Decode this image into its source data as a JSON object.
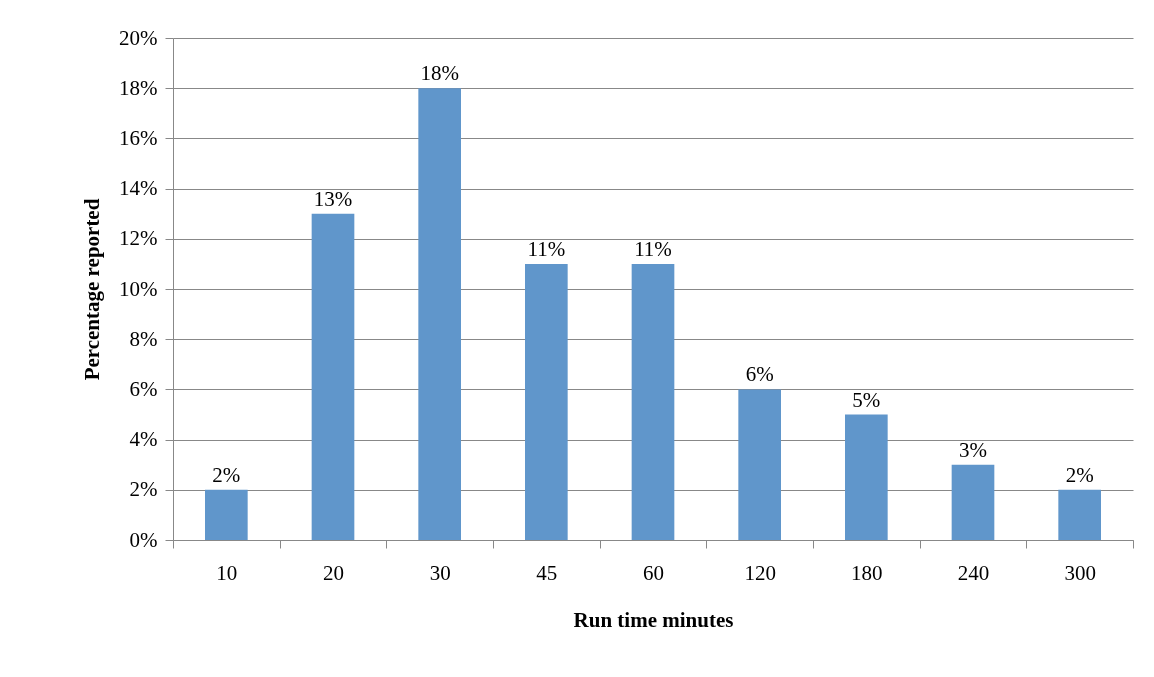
{
  "chart_data": {
    "type": "bar",
    "xlabel": "Run time minutes",
    "ylabel": "Percentage reported",
    "categories": [
      "10",
      "20",
      "30",
      "45",
      "60",
      "120",
      "180",
      "240",
      "300"
    ],
    "values": [
      2,
      13,
      18,
      11,
      11,
      6,
      5,
      3,
      2
    ],
    "value_labels": [
      "2%",
      "13%",
      "18%",
      "11%",
      "11%",
      "6%",
      "5%",
      "3%",
      "2%"
    ],
    "color": "#6096cb",
    "ylim": [
      0,
      20
    ],
    "yticks": [
      {
        "value": 0,
        "label": "0%"
      },
      {
        "value": 2,
        "label": "2%"
      },
      {
        "value": 4,
        "label": "4%"
      },
      {
        "value": 6,
        "label": "6%"
      },
      {
        "value": 8,
        "label": "8%"
      },
      {
        "value": 10,
        "label": "10%"
      },
      {
        "value": 12,
        "label": "12%"
      },
      {
        "value": 14,
        "label": "14%"
      },
      {
        "value": 16,
        "label": "16%"
      },
      {
        "value": 18,
        "label": "18%"
      },
      {
        "value": 20,
        "label": "20%"
      }
    ],
    "grid": "y"
  }
}
